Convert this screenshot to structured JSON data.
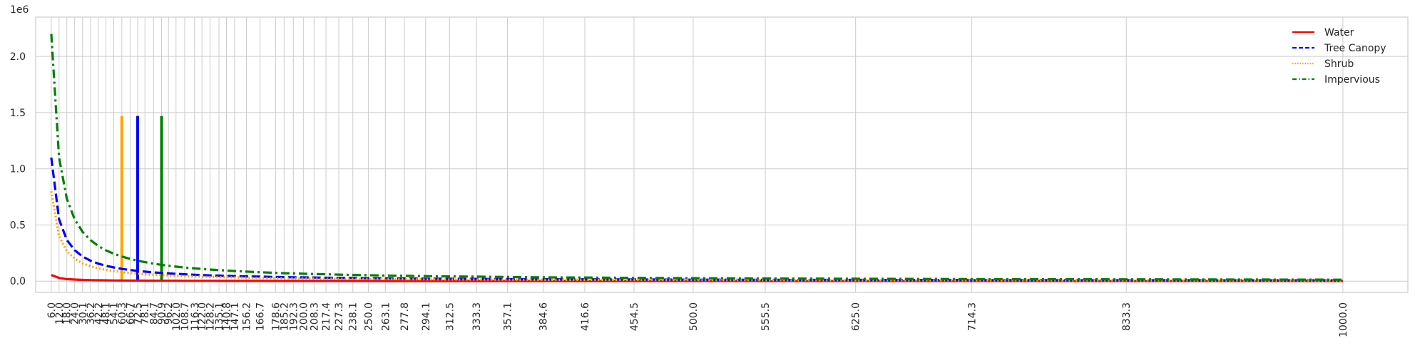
{
  "chart_data": {
    "type": "line",
    "title": "",
    "xlabel": "",
    "ylabel": "",
    "y_offset_label": "1e6",
    "xlim": [
      -6,
      1050
    ],
    "ylim": [
      -0.1,
      2.35
    ],
    "grid": true,
    "legend_position": "top-right",
    "y_ticks": [
      0.0,
      0.5,
      1.0,
      1.5,
      2.0
    ],
    "y_tick_labels": [
      "0.0",
      "0.5",
      "1.0",
      "1.5",
      "2.0"
    ],
    "x_ticks": [
      6.0,
      12.0,
      18.0,
      24.0,
      30.1,
      36.2,
      42.2,
      48.1,
      54.1,
      60.3,
      66.7,
      72.5,
      78.1,
      84.7,
      90.9,
      96.2,
      102.0,
      108.7,
      116.3,
      122.0,
      128.2,
      135.1,
      140.8,
      147.1,
      156.2,
      166.7,
      178.6,
      185.2,
      192.3,
      200.0,
      208.3,
      217.4,
      227.3,
      238.1,
      250.0,
      263.1,
      277.8,
      294.1,
      312.5,
      333.3,
      357.1,
      384.6,
      416.6,
      454.5,
      500.0,
      555.5,
      625.0,
      714.3,
      833.3,
      1000.0
    ],
    "x_tick_labels": [
      "6.0",
      "12.0",
      "18.0",
      "24.0",
      "30.1",
      "36.2",
      "42.2",
      "48.1",
      "54.1",
      "60.3",
      "66.7",
      "72.5",
      "78.1",
      "84.7",
      "90.9",
      "96.2",
      "102.0",
      "108.7",
      "116.3",
      "122.0",
      "128.2",
      "135.1",
      "140.8",
      "147.1",
      "156.2",
      "166.7",
      "178.6",
      "185.2",
      "192.3",
      "200.0",
      "208.3",
      "217.4",
      "227.3",
      "238.1",
      "250.0",
      "263.1",
      "277.8",
      "294.1",
      "312.5",
      "333.3",
      "357.1",
      "384.6",
      "416.6",
      "454.5",
      "500.0",
      "555.5",
      "625.0",
      "714.3",
      "833.3",
      "1000.0"
    ],
    "x": [
      6.0,
      12.0,
      18.0,
      24.0,
      30.1,
      36.2,
      42.2,
      48.1,
      54.1,
      60.3,
      66.7,
      72.5,
      78.1,
      84.7,
      90.9,
      96.2,
      102.0,
      108.7,
      116.3,
      122.0,
      128.2,
      135.1,
      140.8,
      147.1,
      156.2,
      166.7,
      178.6,
      185.2,
      192.3,
      200.0,
      208.3,
      217.4,
      227.3,
      238.1,
      250.0,
      263.1,
      277.8,
      294.1,
      312.5,
      333.3,
      357.1,
      384.6,
      416.6,
      454.5,
      500.0,
      555.5,
      625.0,
      714.3,
      833.3,
      1000.0
    ],
    "series": [
      {
        "name": "Water",
        "color": "#ff0000",
        "style": "solid",
        "values": [
          0.055,
          0.028,
          0.018,
          0.014,
          0.011,
          0.009,
          0.008,
          0.007,
          0.006,
          0.0055,
          0.005,
          0.0046,
          0.0042,
          0.0039,
          0.0036,
          0.0034,
          0.0032,
          0.003,
          0.0028,
          0.0027,
          0.0026,
          0.0024,
          0.0023,
          0.0022,
          0.0021,
          0.002,
          0.0018,
          0.0018,
          0.0017,
          0.0016,
          0.0016,
          0.0015,
          0.0014,
          0.0014,
          0.0013,
          0.0012,
          0.0012,
          0.0011,
          0.001,
          0.001,
          0.0009,
          0.0009,
          0.0008,
          0.0007,
          0.0007,
          0.0006,
          0.0005,
          0.0005,
          0.0004,
          0.0003
        ]
      },
      {
        "name": "Tree Canopy",
        "color": "#0000ff",
        "style": "dashed",
        "values": [
          1.1,
          0.55,
          0.367,
          0.275,
          0.219,
          0.182,
          0.156,
          0.137,
          0.122,
          0.109,
          0.099,
          0.091,
          0.085,
          0.078,
          0.073,
          0.069,
          0.065,
          0.061,
          0.057,
          0.054,
          0.051,
          0.049,
          0.047,
          0.045,
          0.042,
          0.04,
          0.037,
          0.036,
          0.034,
          0.033,
          0.032,
          0.03,
          0.029,
          0.028,
          0.026,
          0.025,
          0.024,
          0.022,
          0.021,
          0.02,
          0.018,
          0.017,
          0.016,
          0.015,
          0.013,
          0.012,
          0.011,
          0.009,
          0.008,
          0.007
        ]
      },
      {
        "name": "Shrub",
        "color": "#ffa500",
        "style": "dotted",
        "values": [
          0.8,
          0.4,
          0.267,
          0.2,
          0.159,
          0.133,
          0.114,
          0.1,
          0.089,
          0.08,
          0.072,
          0.066,
          0.061,
          0.057,
          0.053,
          0.05,
          0.047,
          0.044,
          0.041,
          0.039,
          0.037,
          0.036,
          0.034,
          0.033,
          0.031,
          0.029,
          0.027,
          0.026,
          0.025,
          0.024,
          0.023,
          0.022,
          0.021,
          0.02,
          0.019,
          0.018,
          0.017,
          0.016,
          0.015,
          0.014,
          0.013,
          0.012,
          0.012,
          0.011,
          0.01,
          0.009,
          0.008,
          0.007,
          0.006,
          0.005
        ]
      },
      {
        "name": "Impervious",
        "color": "#008000",
        "style": "dashdot",
        "values": [
          2.2,
          1.1,
          0.733,
          0.55,
          0.439,
          0.365,
          0.313,
          0.274,
          0.244,
          0.219,
          0.198,
          0.182,
          0.169,
          0.156,
          0.145,
          0.137,
          0.129,
          0.121,
          0.114,
          0.108,
          0.103,
          0.098,
          0.094,
          0.09,
          0.085,
          0.079,
          0.074,
          0.071,
          0.069,
          0.066,
          0.063,
          0.061,
          0.058,
          0.055,
          0.053,
          0.05,
          0.048,
          0.045,
          0.042,
          0.04,
          0.037,
          0.034,
          0.032,
          0.029,
          0.026,
          0.024,
          0.021,
          0.018,
          0.016,
          0.013
        ]
      }
    ],
    "vertical_markers": [
      {
        "x": 60.3,
        "color": "#ffa500",
        "ymin": 0.0,
        "ymax": 1.47
      },
      {
        "x": 72.5,
        "color": "#0000ff",
        "ymin": 0.0,
        "ymax": 1.47
      },
      {
        "x": 90.9,
        "color": "#008000",
        "ymin": 0.0,
        "ymax": 1.47
      }
    ]
  }
}
